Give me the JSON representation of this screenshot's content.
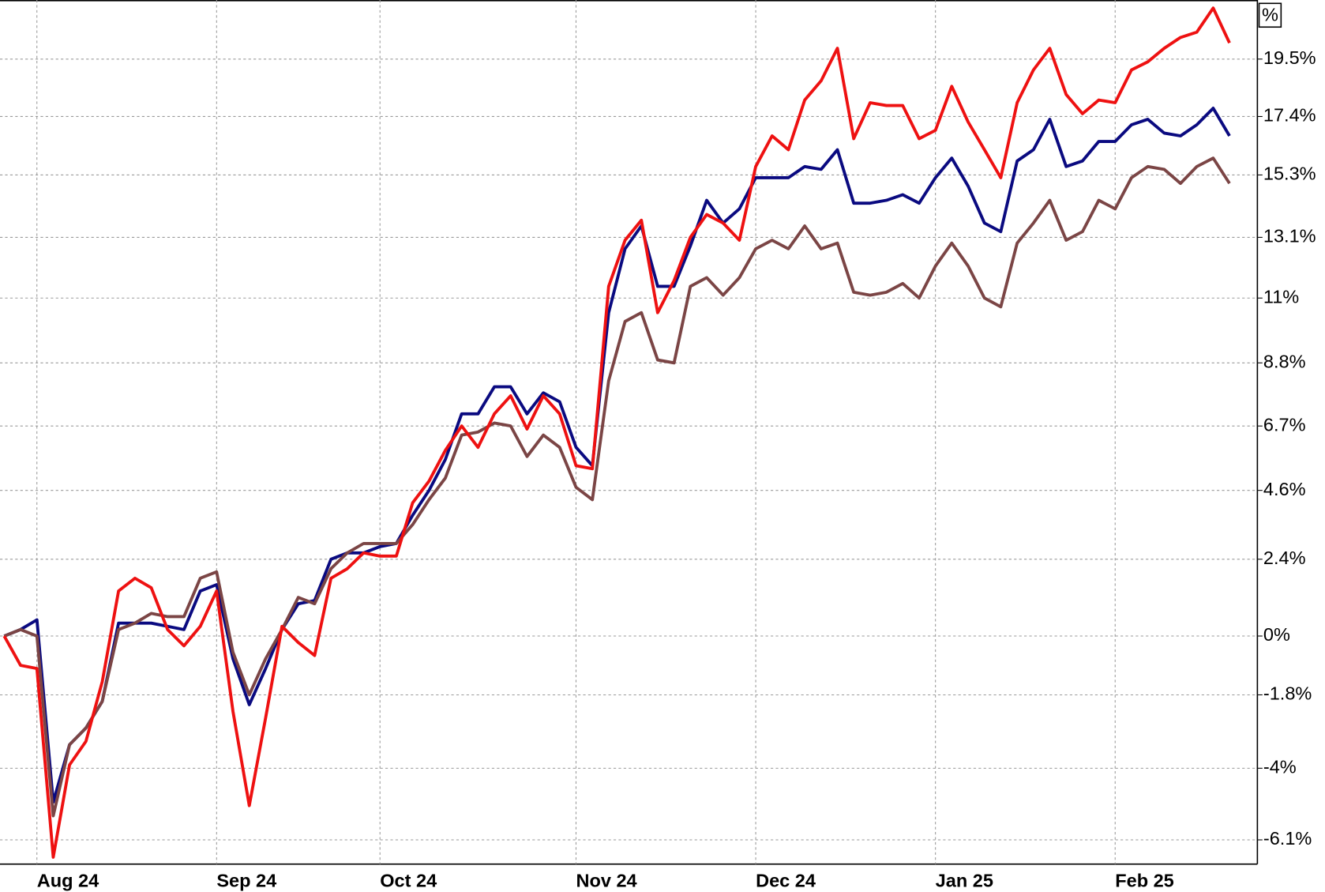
{
  "chart_data": {
    "type": "line",
    "y_unit": "%",
    "categories": [
      null,
      null,
      "Aug 24",
      null,
      null,
      null,
      null,
      null,
      null,
      null,
      null,
      null,
      null,
      "Sep 24",
      null,
      null,
      null,
      null,
      null,
      null,
      null,
      null,
      null,
      "Oct 24",
      null,
      null,
      null,
      null,
      null,
      null,
      null,
      null,
      null,
      null,
      null,
      "Nov 24",
      null,
      null,
      null,
      null,
      null,
      null,
      null,
      null,
      null,
      null,
      "Dec 24",
      null,
      null,
      null,
      null,
      null,
      null,
      null,
      null,
      null,
      null,
      "Jan 25",
      null,
      null,
      null,
      null,
      null,
      null,
      null,
      null,
      null,
      null,
      "Feb 25",
      null,
      null,
      null,
      null,
      null,
      null,
      null
    ],
    "series": [
      {
        "color": "#ee1111",
        "values": [
          0,
          -0.9,
          -1.0,
          -6.6,
          -3.9,
          -3.2,
          -1.4,
          1.4,
          1.8,
          1.5,
          0.2,
          -0.3,
          0.3,
          1.4,
          -2.3,
          -5.1,
          -2.5,
          0.3,
          -0.2,
          -0.6,
          1.8,
          2.1,
          2.6,
          2.5,
          2.5,
          4.2,
          4.9,
          5.9,
          6.7,
          6.0,
          7.1,
          7.7,
          6.6,
          7.7,
          7.1,
          5.4,
          5.3,
          11.4,
          13.0,
          13.7,
          10.5,
          11.6,
          13.1,
          13.9,
          13.6,
          13.0,
          15.6,
          16.7,
          16.2,
          18.0,
          18.7,
          19.9,
          16.6,
          17.9,
          17.8,
          17.8,
          16.6,
          16.9,
          18.5,
          17.2,
          16.2,
          15.2,
          17.9,
          19.1,
          19.9,
          18.2,
          17.5,
          18.0,
          17.9,
          19.1,
          19.4,
          19.9,
          20.3,
          20.5,
          21.4,
          20.1
        ]
      },
      {
        "color": "#0a0a80",
        "values": [
          0,
          0.2,
          0.5,
          -5.0,
          -3.3,
          -2.8,
          -2.0,
          0.4,
          0.4,
          0.4,
          0.3,
          0.2,
          1.4,
          1.6,
          -0.7,
          -2.1,
          -1.0,
          0.2,
          1.0,
          1.1,
          2.4,
          2.6,
          2.6,
          2.8,
          2.9,
          3.8,
          4.6,
          5.6,
          7.1,
          7.1,
          8.0,
          8.0,
          7.1,
          7.8,
          7.5,
          6.0,
          5.4,
          10.5,
          12.7,
          13.5,
          11.4,
          11.4,
          12.8,
          14.4,
          13.6,
          14.1,
          15.2,
          15.2,
          15.2,
          15.6,
          15.5,
          16.2,
          14.3,
          14.3,
          14.4,
          14.6,
          14.3,
          15.2,
          15.9,
          14.9,
          13.6,
          13.3,
          15.8,
          16.2,
          17.3,
          15.6,
          15.8,
          16.5,
          16.5,
          17.1,
          17.3,
          16.8,
          16.7,
          17.1,
          17.7,
          16.7
        ]
      },
      {
        "color": "#7b4545",
        "values": [
          0,
          0.2,
          0,
          -5.4,
          -3.3,
          -2.8,
          -2.0,
          0.2,
          0.4,
          0.7,
          0.6,
          0.6,
          1.8,
          2.0,
          -0.5,
          -1.8,
          -0.7,
          0.2,
          1.2,
          1.0,
          2.1,
          2.6,
          2.9,
          2.9,
          2.9,
          3.5,
          4.3,
          5.0,
          6.4,
          6.5,
          6.8,
          6.7,
          5.7,
          6.4,
          6.0,
          4.7,
          4.3,
          8.2,
          10.2,
          10.5,
          8.9,
          8.8,
          11.4,
          11.7,
          11.1,
          11.7,
          12.7,
          13.0,
          12.7,
          13.5,
          12.7,
          12.9,
          11.2,
          11.1,
          11.2,
          11.5,
          11.0,
          12.1,
          12.9,
          12.1,
          11.0,
          10.7,
          12.9,
          13.6,
          14.4,
          13.0,
          13.3,
          14.4,
          14.1,
          15.2,
          15.6,
          15.5,
          15.0,
          15.6,
          15.9,
          15.0
        ]
      }
    ],
    "ylog": true,
    "ylim": [
      -6.8,
      21.7
    ],
    "yticks": [
      {
        "value": 19.5,
        "label": "19.5%"
      },
      {
        "value": 17.4,
        "label": "17.4%"
      },
      {
        "value": 15.3,
        "label": "15.3%"
      },
      {
        "value": 13.1,
        "label": "13.1%"
      },
      {
        "value": 11,
        "label": "11%"
      },
      {
        "value": 8.8,
        "label": "8.8%"
      },
      {
        "value": 6.7,
        "label": "6.7%"
      },
      {
        "value": 4.6,
        "label": "4.6%"
      },
      {
        "value": 2.4,
        "label": "2.4%"
      },
      {
        "value": 0,
        "label": "0%"
      },
      {
        "value": -1.8,
        "label": "-1.8%"
      },
      {
        "value": -4,
        "label": "-4%"
      },
      {
        "value": -6.1,
        "label": "-6.1%"
      }
    ],
    "grid": true
  }
}
